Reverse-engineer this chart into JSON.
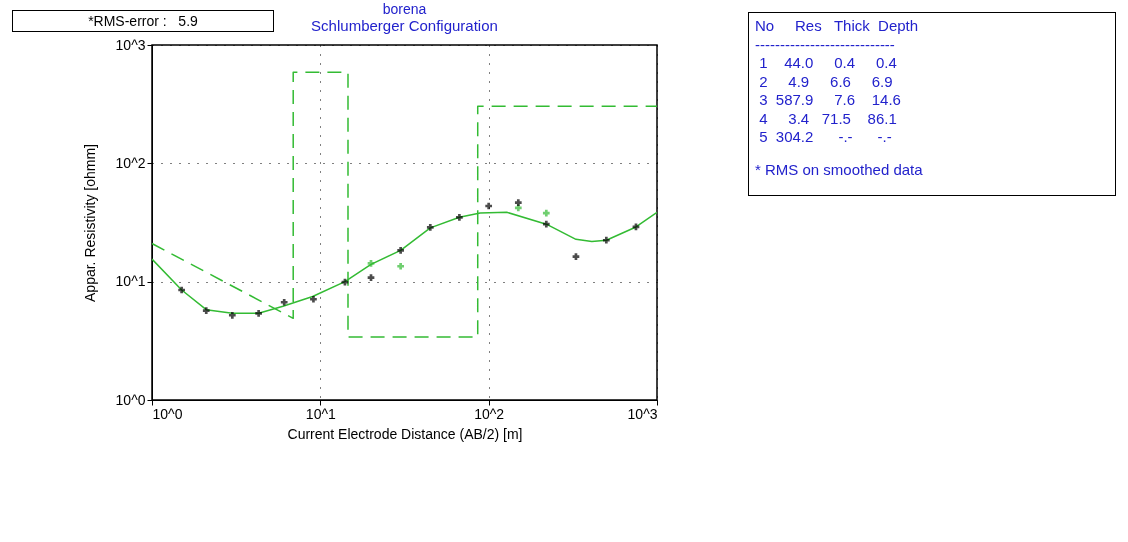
{
  "chart_data": {
    "type": "line",
    "title": "borena",
    "subtitle": "Schlumberger Configuration",
    "xlabel": "Current Electrode Distance (AB/2) [m]",
    "ylabel": "Appar. Resistivity [ohmm]",
    "log": "xy",
    "grid": true,
    "xlim": [
      1,
      1000
    ],
    "ylim": [
      1,
      1000
    ],
    "xticks": [
      {
        "value": 1,
        "label": "10^0"
      },
      {
        "value": 10,
        "label": "10^1"
      },
      {
        "value": 100,
        "label": "10^2"
      },
      {
        "value": 1000,
        "label": "10^3"
      }
    ],
    "yticks": [
      {
        "value": 1,
        "label": "10^0"
      },
      {
        "value": 10,
        "label": "10^1"
      },
      {
        "value": 100,
        "label": "10^2"
      },
      {
        "value": 1000,
        "label": "10^3"
      }
    ],
    "series": [
      {
        "type": "line",
        "color": "#33bb33",
        "line_style": "dashed",
        "x": [
          1,
          6.9,
          6.9,
          14.6,
          14.6,
          86.1,
          86.1,
          1000
        ],
        "values": [
          21,
          4.9,
          587.9,
          587.9,
          3.4,
          3.4,
          304.2,
          304.2
        ]
      },
      {
        "type": "line",
        "color": "#33bb33",
        "line_style": "solid",
        "x": [
          1,
          1.5,
          2.1,
          3,
          4.3,
          6,
          9,
          14,
          20,
          30,
          45,
          67,
          89,
          128,
          220,
          330,
          410,
          500,
          750,
          1000
        ],
        "values": [
          15.5,
          8.5,
          5.8,
          5.4,
          5.4,
          6.2,
          7.5,
          10,
          14,
          18.4,
          28.5,
          35,
          38,
          38.6,
          30.6,
          22.8,
          21.8,
          22.4,
          29,
          38.6
        ]
      },
      {
        "type": "scatter",
        "color": "#33bb33",
        "marker": "cross",
        "x": [
          20,
          30,
          150,
          220
        ],
        "values": [
          14.3,
          13.5,
          42,
          38
        ]
      },
      {
        "type": "scatter",
        "color": "#000000",
        "marker": "cross",
        "x": [
          1.5,
          2.1,
          3,
          4.3,
          6.1,
          9.1,
          14,
          20,
          30,
          45,
          67,
          100,
          150,
          220,
          330,
          500,
          750
        ],
        "values": [
          8.5,
          5.7,
          5.2,
          5.4,
          6.7,
          7.1,
          9.9,
          10.8,
          18.4,
          28.8,
          35,
          43.6,
          46.5,
          30.6,
          16.3,
          22.4,
          29
        ]
      }
    ],
    "annotations": [
      "*RMS-error :   5.9",
      "No     Res   Thick  Depth",
      "----------------------------",
      " 1    44.0     0.4     0.4",
      " 2     4.9     6.6     6.9",
      " 3  587.9     7.6    14.6",
      " 4     3.4   71.5    86.1",
      " 5  304.2      -.-      -.-",
      "* RMS on smoothed data"
    ]
  }
}
